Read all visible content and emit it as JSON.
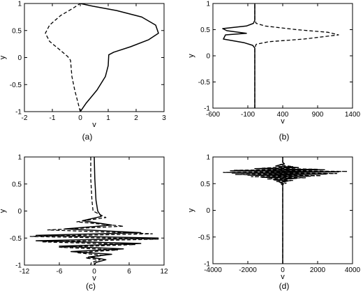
{
  "chart_data": [
    {
      "type": "line",
      "panel_label": "(a)",
      "xlabel": "v",
      "ylabel": "y",
      "xlim": [
        -2,
        3
      ],
      "ylim": [
        -1,
        1
      ],
      "xticks": [
        "-2",
        "-1",
        "0",
        "1",
        "2",
        "3"
      ],
      "yticks": [
        "-1",
        "-0.5",
        "0",
        "0.5",
        "1"
      ],
      "xtick_values": [
        -2,
        -1,
        0,
        1,
        2,
        3
      ],
      "ytick_values": [
        -1,
        -0.5,
        0,
        0.5,
        1
      ],
      "series": [
        {
          "style": "solid",
          "points": [
            [
              0,
              -1
            ],
            [
              0.2,
              -0.85
            ],
            [
              0.6,
              -0.6
            ],
            [
              0.9,
              -0.35
            ],
            [
              1.0,
              -0.15
            ],
            [
              1.02,
              0.05
            ],
            [
              1.2,
              0.1
            ],
            [
              1.8,
              0.2
            ],
            [
              2.45,
              0.33
            ],
            [
              2.8,
              0.45
            ],
            [
              2.7,
              0.6
            ],
            [
              2.2,
              0.75
            ],
            [
              1.3,
              0.87
            ],
            [
              0.45,
              0.95
            ],
            [
              0,
              1
            ]
          ]
        },
        {
          "style": "dashed",
          "points": [
            [
              0,
              -1
            ],
            [
              -0.1,
              -0.8
            ],
            [
              -0.2,
              -0.6
            ],
            [
              -0.3,
              -0.35
            ],
            [
              -0.35,
              -0.05
            ],
            [
              -0.45,
              0.02
            ],
            [
              -0.75,
              0.15
            ],
            [
              -1.1,
              0.3
            ],
            [
              -1.25,
              0.45
            ],
            [
              -1.1,
              0.6
            ],
            [
              -0.7,
              0.78
            ],
            [
              -0.3,
              0.9
            ],
            [
              0,
              1
            ]
          ]
        }
      ]
    },
    {
      "type": "line",
      "panel_label": "(b)",
      "xlabel": "v",
      "ylabel": "y",
      "xlim": [
        -600,
        1400
      ],
      "ylim": [
        -1,
        1
      ],
      "xticks": [
        "-600",
        "-100",
        "400",
        "900",
        "1400"
      ],
      "yticks": [
        "-1",
        "-0.5",
        "0",
        "0.5",
        "1"
      ],
      "xtick_values": [
        -600,
        -100,
        400,
        900,
        1400
      ],
      "ytick_values": [
        -1,
        -0.5,
        0,
        0.5,
        1
      ],
      "series": [
        {
          "style": "solid",
          "points": [
            [
              0,
              -1
            ],
            [
              0,
              0.15
            ],
            [
              -30,
              0.2
            ],
            [
              -150,
              0.25
            ],
            [
              -450,
              0.32
            ],
            [
              -420,
              0.4
            ],
            [
              -120,
              0.43
            ],
            [
              -400,
              0.48
            ],
            [
              -460,
              0.52
            ],
            [
              -120,
              0.57
            ],
            [
              -20,
              0.62
            ],
            [
              0,
              0.68
            ],
            [
              0,
              1
            ]
          ]
        },
        {
          "style": "dashed",
          "points": [
            [
              0,
              -1
            ],
            [
              0,
              0.15
            ],
            [
              20,
              0.22
            ],
            [
              200,
              0.27
            ],
            [
              700,
              0.32
            ],
            [
              1200,
              0.4
            ],
            [
              1050,
              0.45
            ],
            [
              600,
              0.5
            ],
            [
              150,
              0.57
            ],
            [
              20,
              0.62
            ],
            [
              0,
              0.68
            ],
            [
              0,
              1
            ]
          ]
        }
      ]
    },
    {
      "type": "line",
      "panel_label": "(c)",
      "xlabel": "v",
      "ylabel": "y",
      "xlim": [
        -12,
        12
      ],
      "ylim": [
        -1,
        1
      ],
      "xticks": [
        "-12",
        "-6",
        "0",
        "6",
        "12"
      ],
      "yticks": [
        "-1",
        "-0.5",
        "0",
        "0.5",
        "1"
      ],
      "xtick_values": [
        -12,
        -6,
        0,
        6,
        12
      ],
      "ytick_values": [
        -1,
        -0.5,
        0,
        0.5,
        1
      ],
      "series": [
        {
          "style": "solid",
          "points": [
            [
              0,
              1
            ],
            [
              0.1,
              0.6
            ],
            [
              0.3,
              0.2
            ],
            [
              0.6,
              0
            ],
            [
              1.2,
              -0.1
            ],
            [
              -2,
              -0.18
            ],
            [
              3,
              -0.26
            ],
            [
              -5,
              -0.33
            ],
            [
              8,
              -0.4
            ],
            [
              -10,
              -0.45
            ],
            [
              11,
              -0.5
            ],
            [
              -10,
              -0.55
            ],
            [
              8,
              -0.6
            ],
            [
              -6,
              -0.65
            ],
            [
              5,
              -0.7
            ],
            [
              -4,
              -0.75
            ],
            [
              3,
              -0.8
            ],
            [
              -1,
              -0.85
            ],
            [
              1,
              -0.88
            ],
            [
              2,
              -0.9
            ],
            [
              0.3,
              -0.95
            ],
            [
              0,
              -1
            ]
          ]
        },
        {
          "style": "dashed",
          "points": [
            [
              -0.6,
              1
            ],
            [
              -0.6,
              0.6
            ],
            [
              -0.4,
              0.2
            ],
            [
              -0.2,
              0
            ],
            [
              2,
              -0.12
            ],
            [
              -3,
              -0.2
            ],
            [
              5,
              -0.28
            ],
            [
              -8,
              -0.35
            ],
            [
              10,
              -0.42
            ],
            [
              -11,
              -0.47
            ],
            [
              11,
              -0.52
            ],
            [
              -9,
              -0.57
            ],
            [
              7,
              -0.62
            ],
            [
              -6,
              -0.67
            ],
            [
              4,
              -0.72
            ],
            [
              -3,
              -0.77
            ],
            [
              1.5,
              -0.82
            ],
            [
              -1.5,
              -0.87
            ],
            [
              1,
              -0.9
            ],
            [
              -0.5,
              -0.95
            ],
            [
              -0.6,
              -1
            ]
          ]
        }
      ]
    },
    {
      "type": "line",
      "panel_label": "(d)",
      "xlabel": "v",
      "ylabel": "y",
      "xlim": [
        -4000,
        4000
      ],
      "ylim": [
        -1,
        1
      ],
      "xticks": [
        "-4000",
        "-2000",
        "0",
        "2000",
        "4000"
      ],
      "yticks": [
        "-1",
        "-0.5",
        "0",
        "0.5",
        "1"
      ],
      "xtick_values": [
        -4000,
        -2000,
        0,
        2000,
        4000
      ],
      "ytick_values": [
        -1,
        -0.5,
        0,
        0.5,
        1
      ],
      "series": [
        {
          "style": "solid",
          "points": [
            [
              0,
              -1
            ],
            [
              0,
              0.48
            ],
            [
              50,
              0.5
            ],
            [
              -150,
              0.52
            ],
            [
              300,
              0.55
            ],
            [
              -500,
              0.57
            ],
            [
              800,
              0.6
            ],
            [
              -1200,
              0.62
            ],
            [
              1600,
              0.64
            ],
            [
              -2000,
              0.66
            ],
            [
              2500,
              0.68
            ],
            [
              -2900,
              0.7
            ],
            [
              3200,
              0.72
            ],
            [
              -3000,
              0.74
            ],
            [
              2400,
              0.76
            ],
            [
              -1600,
              0.78
            ],
            [
              900,
              0.8
            ],
            [
              -400,
              0.83
            ],
            [
              100,
              0.87
            ],
            [
              0,
              0.9
            ],
            [
              0,
              1
            ]
          ]
        },
        {
          "style": "dashed",
          "points": [
            [
              0,
              -1
            ],
            [
              0,
              0.47
            ],
            [
              -80,
              0.49
            ],
            [
              200,
              0.51
            ],
            [
              -350,
              0.54
            ],
            [
              600,
              0.56
            ],
            [
              -900,
              0.59
            ],
            [
              1300,
              0.61
            ],
            [
              -1800,
              0.63
            ],
            [
              2200,
              0.65
            ],
            [
              -2700,
              0.67
            ],
            [
              3100,
              0.69
            ],
            [
              -3400,
              0.71
            ],
            [
              3700,
              0.73
            ],
            [
              -2800,
              0.75
            ],
            [
              2000,
              0.77
            ],
            [
              -1200,
              0.79
            ],
            [
              600,
              0.82
            ],
            [
              -200,
              0.85
            ],
            [
              50,
              0.88
            ],
            [
              0,
              0.9
            ],
            [
              0,
              1
            ]
          ]
        }
      ]
    }
  ]
}
